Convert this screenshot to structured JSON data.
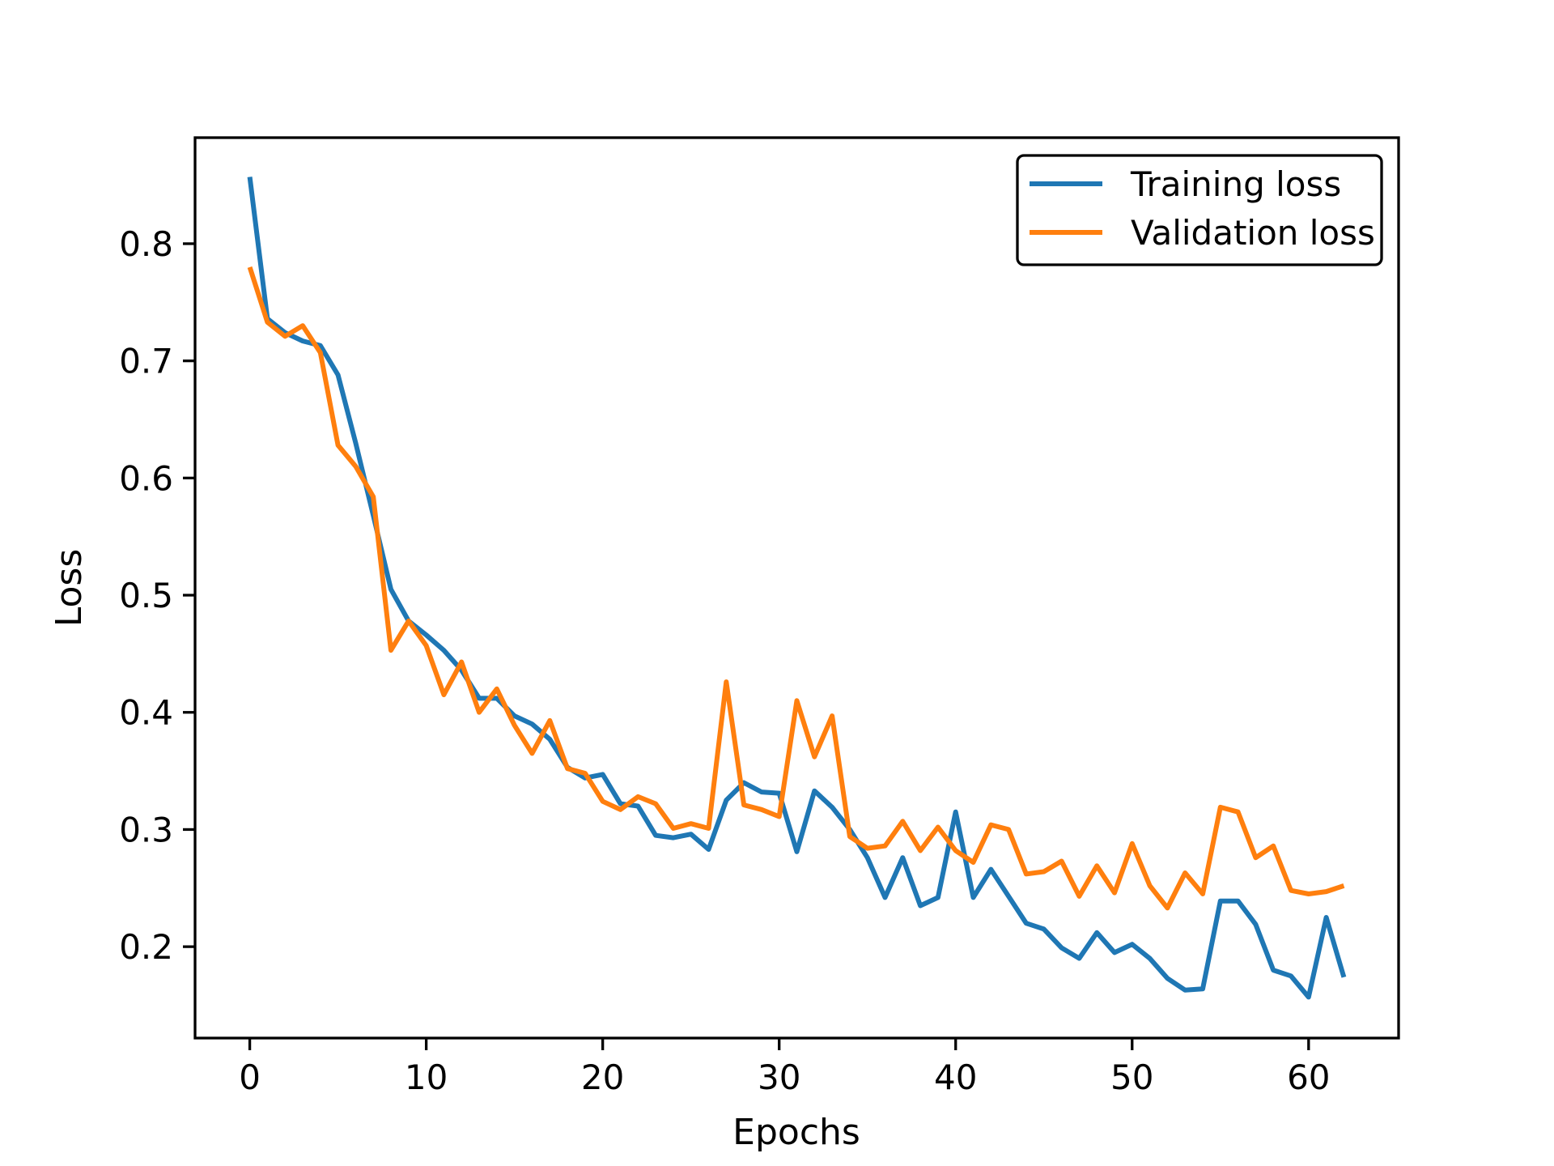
{
  "chart_data": {
    "type": "line",
    "title": "",
    "xlabel": "Epochs",
    "ylabel": "Loss",
    "x": [
      0,
      1,
      2,
      3,
      4,
      5,
      6,
      7,
      8,
      9,
      10,
      11,
      12,
      13,
      14,
      15,
      16,
      17,
      18,
      19,
      20,
      21,
      22,
      23,
      24,
      25,
      26,
      27,
      28,
      29,
      30,
      31,
      32,
      33,
      34,
      35,
      36,
      37,
      38,
      39,
      40,
      41,
      42,
      43,
      44,
      45,
      46,
      47,
      48,
      49,
      50,
      51,
      52,
      53,
      54,
      55,
      56,
      57,
      58,
      59,
      60,
      61,
      62
    ],
    "series": [
      {
        "name": "Training loss",
        "color": "#1f77b4",
        "values": [
          0.857,
          0.736,
          0.724,
          0.717,
          0.713,
          0.688,
          0.63,
          0.568,
          0.505,
          0.478,
          0.466,
          0.453,
          0.436,
          0.412,
          0.412,
          0.397,
          0.39,
          0.377,
          0.353,
          0.344,
          0.347,
          0.322,
          0.32,
          0.295,
          0.293,
          0.296,
          0.283,
          0.325,
          0.34,
          0.332,
          0.331,
          0.281,
          0.333,
          0.319,
          0.3,
          0.276,
          0.242,
          0.276,
          0.235,
          0.242,
          0.315,
          0.242,
          0.266,
          0.243,
          0.22,
          0.215,
          0.199,
          0.19,
          0.212,
          0.195,
          0.202,
          0.19,
          0.173,
          0.163,
          0.164,
          0.239,
          0.239,
          0.219,
          0.18,
          0.175,
          0.157,
          0.225,
          0.174
        ]
      },
      {
        "name": "Validation loss",
        "color": "#ff7f0e",
        "values": [
          0.78,
          0.733,
          0.721,
          0.73,
          0.707,
          0.628,
          0.61,
          0.584,
          0.453,
          0.478,
          0.457,
          0.415,
          0.443,
          0.4,
          0.42,
          0.389,
          0.365,
          0.393,
          0.352,
          0.348,
          0.324,
          0.317,
          0.328,
          0.322,
          0.301,
          0.305,
          0.301,
          0.426,
          0.321,
          0.317,
          0.311,
          0.41,
          0.362,
          0.397,
          0.294,
          0.284,
          0.286,
          0.307,
          0.282,
          0.302,
          0.282,
          0.272,
          0.304,
          0.3,
          0.262,
          0.264,
          0.273,
          0.243,
          0.269,
          0.246,
          0.288,
          0.252,
          0.233,
          0.263,
          0.245,
          0.319,
          0.315,
          0.276,
          0.286,
          0.248,
          0.245,
          0.247,
          0.252
        ]
      }
    ],
    "xlim": [
      -3.1,
      65.1
    ],
    "ylim": [
      0.122,
      0.8905
    ],
    "xticks": [
      0,
      10,
      20,
      30,
      40,
      50,
      60
    ],
    "yticks": [
      0.2,
      0.3,
      0.4,
      0.5,
      0.6,
      0.7,
      0.8
    ],
    "grid": false,
    "legend_position": "upper right"
  },
  "figure": {
    "background": "#ffffff",
    "spine_color": "#000000",
    "tick_color": "#000000",
    "text_color": "#000000"
  }
}
